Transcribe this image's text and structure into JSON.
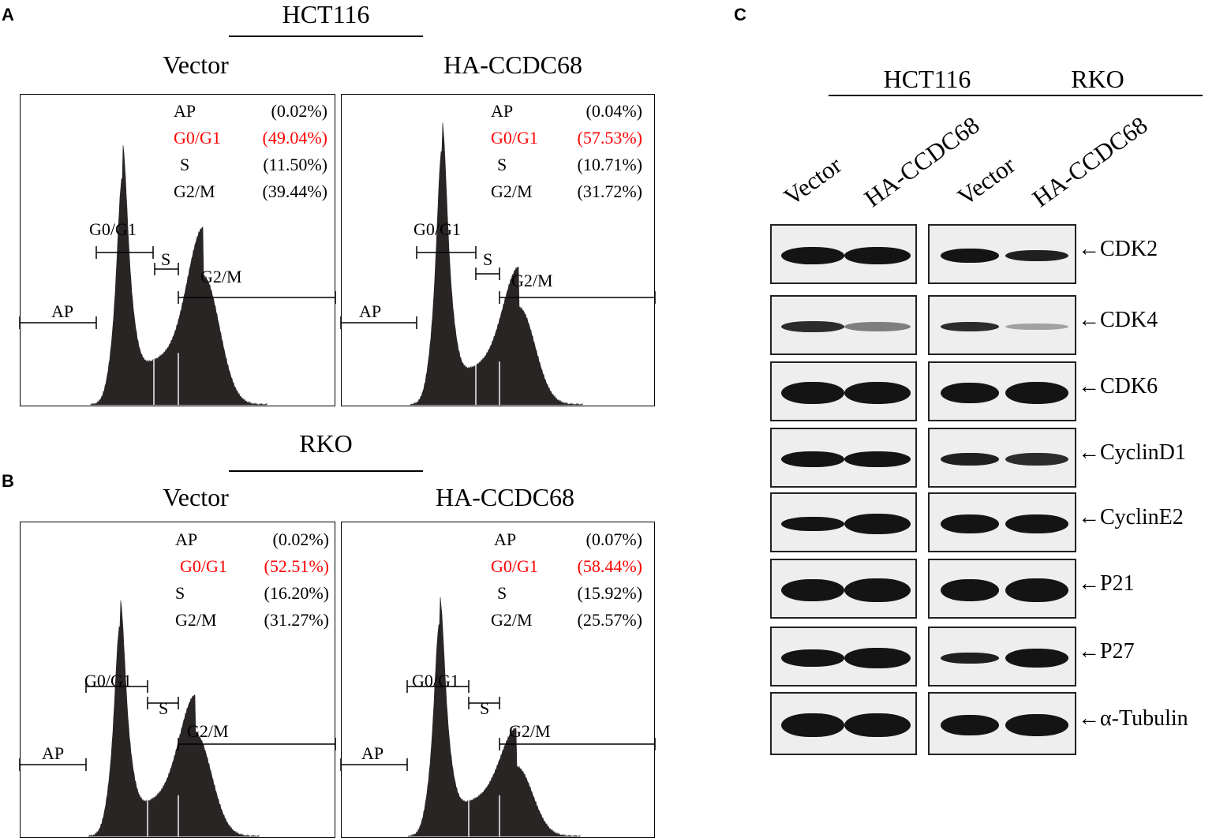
{
  "panels": {
    "a": "A",
    "b": "B",
    "c": "C"
  },
  "hct116": {
    "title": "HCT116",
    "vector": {
      "title": "Vector",
      "stats": [
        {
          "label": "AP",
          "value": "(0.02%)"
        },
        {
          "label": "G0/G1",
          "value": "(49.04%)"
        },
        {
          "label": "S",
          "value": "(11.50%)"
        },
        {
          "label": "G2/M",
          "value": "(39.44%)"
        }
      ]
    },
    "ha": {
      "title": "HA-CCDC68",
      "stats": [
        {
          "label": "AP",
          "value": "(0.04%)"
        },
        {
          "label": "G0/G1",
          "value": "(57.53%)"
        },
        {
          "label": "S",
          "value": "(10.71%)"
        },
        {
          "label": "G2/M",
          "value": "(31.72%)"
        }
      ]
    }
  },
  "rko": {
    "title": "RKO",
    "vector": {
      "title": "Vector",
      "stats": [
        {
          "label": "AP",
          "value": "(0.02%)"
        },
        {
          "label": "G0/G1",
          "value": "(52.51%)"
        },
        {
          "label": "S",
          "value": "(16.20%)"
        },
        {
          "label": "G2/M",
          "value": "(31.27%)"
        }
      ]
    },
    "ha": {
      "title": "HA-CCDC68",
      "stats": [
        {
          "label": "AP",
          "value": "(0.07%)"
        },
        {
          "label": "G0/G1",
          "value": "(58.44%)"
        },
        {
          "label": "S",
          "value": "(15.92%)"
        },
        {
          "label": "G2/M",
          "value": "(25.57%)"
        }
      ]
    }
  },
  "gate_labels": {
    "g0g1": "G0/G1",
    "s": "S",
    "g2m": "G2/M",
    "ap": "AP"
  },
  "highlight_color": "#ff0000",
  "blot": {
    "groups": [
      "HCT116",
      "RKO"
    ],
    "lanes": [
      "Vector",
      "HA-CCDC68",
      "Vector",
      "HA-CCDC68"
    ],
    "proteins": [
      "CDK2",
      "CDK4",
      "CDK6",
      "CyclinD1",
      "CyclinE2",
      "P21",
      "P27",
      "α-Tubulin"
    ],
    "arrow": "←"
  }
}
